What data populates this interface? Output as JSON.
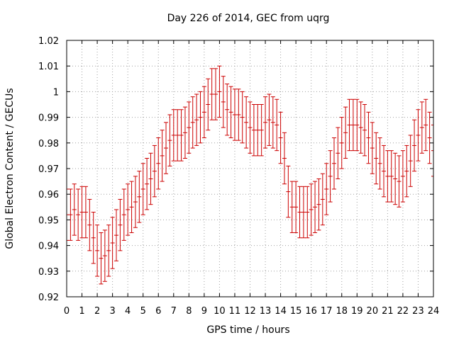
{
  "chart_data": {
    "type": "line",
    "title": "Day 226 of 2014, GEC from uqrg",
    "xlabel": "GPS time / hours",
    "ylabel": "Global Electron Content / GECUs",
    "xlim": [
      0,
      24
    ],
    "ylim": [
      0.92,
      1.02
    ],
    "x_ticks": [
      0,
      1,
      2,
      3,
      4,
      5,
      6,
      7,
      8,
      9,
      10,
      11,
      12,
      13,
      14,
      15,
      16,
      17,
      18,
      19,
      20,
      21,
      22,
      23,
      24
    ],
    "y_ticks": [
      "0.92",
      "0.93",
      "0.94",
      "0.95",
      "0.96",
      "0.97",
      "0.98",
      "0.99",
      "1",
      "1.01",
      "1.02"
    ],
    "grid": true,
    "legend": "none",
    "error_bar_halfwidth": 0.01,
    "color": "#cc0000",
    "series": [
      {
        "x": [
          0,
          0.25,
          0.5,
          0.75,
          1,
          1.25,
          1.5,
          1.75,
          2,
          2.25,
          2.5,
          2.75,
          3,
          3.25,
          3.5,
          3.75,
          4,
          4.25,
          4.5,
          4.75,
          5,
          5.25,
          5.5,
          5.75,
          6,
          6.25,
          6.5,
          6.75,
          7,
          7.25,
          7.5,
          7.75,
          8,
          8.25,
          8.5,
          8.75,
          9,
          9.25,
          9.5,
          9.75,
          10,
          10.25,
          10.5,
          10.75,
          11,
          11.25,
          11.5,
          11.75,
          12,
          12.25,
          12.5,
          12.75,
          13,
          13.25,
          13.5,
          13.75,
          14,
          14.25,
          14.5,
          14.75,
          15,
          15.25,
          15.5,
          15.75,
          16,
          16.25,
          16.5,
          16.75,
          17,
          17.25,
          17.5,
          17.75,
          18,
          18.25,
          18.5,
          18.75,
          19,
          19.25,
          19.5,
          19.75,
          20,
          20.25,
          20.5,
          20.75,
          21,
          21.25,
          21.5,
          21.75,
          22,
          22.25,
          22.5,
          22.75,
          23,
          23.25,
          23.5,
          23.75,
          24
        ],
        "y": [
          0.952,
          0.952,
          0.954,
          0.952,
          0.953,
          0.953,
          0.948,
          0.943,
          0.938,
          0.935,
          0.936,
          0.938,
          0.941,
          0.944,
          0.948,
          0.952,
          0.954,
          0.955,
          0.957,
          0.959,
          0.962,
          0.964,
          0.966,
          0.969,
          0.972,
          0.975,
          0.978,
          0.981,
          0.983,
          0.983,
          0.983,
          0.984,
          0.986,
          0.988,
          0.989,
          0.99,
          0.992,
          0.995,
          0.999,
          0.999,
          1.0,
          0.996,
          0.993,
          0.992,
          0.991,
          0.991,
          0.99,
          0.988,
          0.986,
          0.985,
          0.985,
          0.985,
          0.988,
          0.989,
          0.988,
          0.987,
          0.982,
          0.974,
          0.961,
          0.955,
          0.955,
          0.953,
          0.953,
          0.953,
          0.954,
          0.955,
          0.956,
          0.958,
          0.962,
          0.967,
          0.972,
          0.976,
          0.98,
          0.984,
          0.987,
          0.987,
          0.987,
          0.986,
          0.985,
          0.982,
          0.978,
          0.974,
          0.972,
          0.969,
          0.967,
          0.967,
          0.966,
          0.965,
          0.967,
          0.969,
          0.973,
          0.979,
          0.983,
          0.986,
          0.987,
          0.982,
          0.977
        ]
      }
    ]
  }
}
